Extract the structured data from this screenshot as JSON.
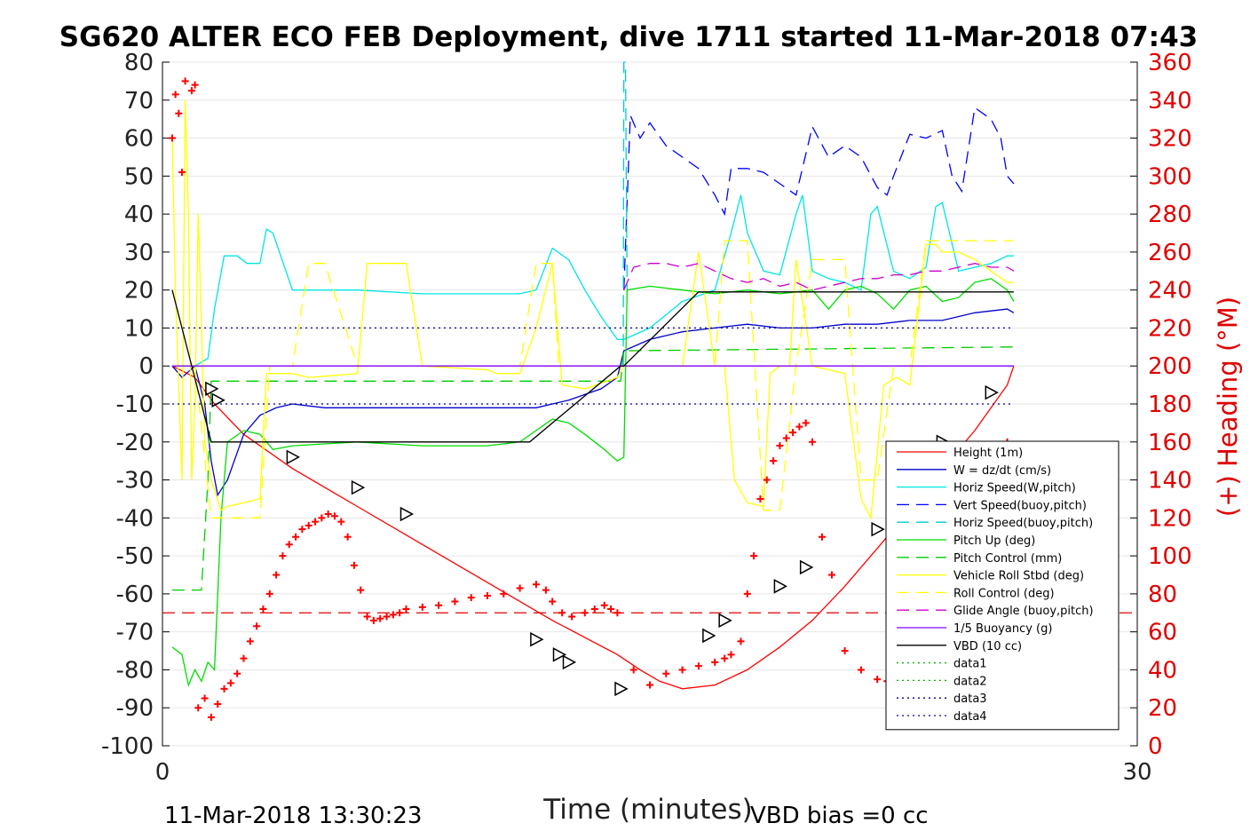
{
  "chart_data": {
    "type": "line",
    "title": "SG620 ALTER ECO FEB Deployment, dive 1711 started 11-Mar-2018 07:43",
    "xlabel": "Time (minutes)",
    "ylabel_right": "(+) Heading (°M)",
    "xlim": [
      0,
      30
    ],
    "ylim_left": [
      -100,
      80
    ],
    "ylim_right": [
      0,
      360
    ],
    "x_ticks": [
      "0",
      "30"
    ],
    "y_left_ticks": [
      "80",
      "70",
      "60",
      "50",
      "40",
      "30",
      "20",
      "10",
      "0",
      "-10",
      "-20",
      "-30",
      "-40",
      "-50",
      "-60",
      "-70",
      "-80",
      "-90",
      "-100"
    ],
    "y_right_ticks": [
      "360",
      "340",
      "320",
      "300",
      "280",
      "260",
      "240",
      "220",
      "200",
      "180",
      "160",
      "140",
      "120",
      "100",
      "80",
      "60",
      "40",
      "20",
      "0"
    ],
    "grid": true,
    "legend_position": "bottom-right",
    "footer_left": "11-Mar-2018 13:30:23",
    "footer_right": "VBD bias =0 cc",
    "series": [
      {
        "name": "Height (1m)",
        "color": "#ff0000",
        "style": "solid",
        "x": [
          0.3,
          1.0,
          1.6,
          2.5,
          4.0,
          6.0,
          8.0,
          10.0,
          12.0,
          14.0,
          14.7,
          15.3,
          16.0,
          17.0,
          18.0,
          19.0,
          20.0,
          21.0,
          22.0,
          23.0,
          24.0,
          25.0,
          26.0,
          26.2
        ],
        "y": [
          0,
          -3,
          -10,
          -18,
          -27,
          -37,
          -47,
          -57,
          -67,
          -76,
          -80,
          -83,
          -85,
          -84,
          -80,
          -74,
          -67,
          -58,
          -48,
          -38,
          -27,
          -17,
          -5,
          0
        ]
      },
      {
        "name": "W = dz/dt (cm/s)",
        "color": "#0000cc",
        "style": "solid",
        "x": [
          0.3,
          0.6,
          1.0,
          1.3,
          1.5,
          1.7,
          2.0,
          2.5,
          3.0,
          3.5,
          4.0,
          5.0,
          6.0,
          8.0,
          10.0,
          11.5,
          12.5,
          13.5,
          14.0,
          14.2,
          15.0,
          16.0,
          17.0,
          18.0,
          19.0,
          20.0,
          21.0,
          22.0,
          23.0,
          24.0,
          25.0,
          26.0,
          26.2
        ],
        "y": [
          0,
          -3,
          0,
          -10,
          -25,
          -34,
          -30,
          -18,
          -13,
          -11,
          -10,
          -11,
          -11,
          -11,
          -11,
          -11,
          -9,
          -6,
          -3,
          4,
          7,
          9,
          10,
          11,
          10,
          10,
          11,
          11,
          12,
          12,
          14,
          15,
          14
        ]
      },
      {
        "name": "Horiz Speed(W,pitch)",
        "color": "#00e5e5",
        "style": "solid",
        "x": [
          0.3,
          1.0,
          1.4,
          1.6,
          1.9,
          2.3,
          2.6,
          3.0,
          3.2,
          3.4,
          4.0,
          6.0,
          8.0,
          10.0,
          11.0,
          11.5,
          12.0,
          12.5,
          13.0,
          13.5,
          14.0,
          14.2,
          15.0,
          16.0,
          17.0,
          17.5,
          17.8,
          18.0,
          18.5,
          19.0,
          19.5,
          19.7,
          20.0,
          20.5,
          21.0,
          21.5,
          21.8,
          22.0,
          22.5,
          23.0,
          23.5,
          23.8,
          24.0,
          24.5,
          25.0,
          25.5,
          26.0,
          26.2
        ],
        "y": [
          0,
          0,
          2,
          15,
          29,
          29,
          27,
          27,
          36,
          35,
          20,
          20,
          19,
          19,
          19,
          20,
          31,
          28,
          20,
          13,
          7,
          7,
          10,
          17,
          20,
          35,
          45,
          35,
          25,
          24,
          40,
          45,
          25,
          23,
          22,
          20,
          40,
          42,
          25,
          23,
          26,
          42,
          43,
          25,
          26,
          27,
          29,
          29
        ]
      },
      {
        "name": "Vert Speed(buoy,pitch)",
        "color": "#0000ff",
        "style": "dash",
        "x": [
          14.2,
          14.4,
          14.7,
          15.0,
          15.5,
          16.0,
          16.5,
          17.0,
          17.3,
          17.5,
          18.0,
          18.5,
          19.0,
          19.5,
          20.0,
          20.5,
          21.0,
          21.5,
          22.0,
          22.3,
          22.5,
          23.0,
          23.5,
          24.0,
          24.3,
          24.6,
          25.0,
          25.5,
          25.8,
          26.0,
          26.2
        ],
        "y": [
          20,
          66,
          60,
          64,
          58,
          55,
          52,
          45,
          40,
          52,
          52,
          51,
          48,
          45,
          63,
          55,
          58,
          55,
          47,
          45,
          50,
          61,
          60,
          62,
          50,
          46,
          68,
          65,
          60,
          50,
          48
        ]
      },
      {
        "name": "Horiz Speed(buoy,pitch)",
        "color": "#00cccc",
        "style": "dash",
        "x": [
          14.18,
          14.2,
          14.25,
          14.3
        ],
        "y": [
          0,
          80,
          80,
          20
        ]
      },
      {
        "name": "Pitch Up (deg)",
        "color": "#00dd00",
        "style": "solid",
        "x": [
          0.3,
          0.6,
          0.8,
          1.0,
          1.2,
          1.4,
          1.6,
          1.8,
          2.0,
          2.5,
          3.0,
          3.4,
          4.0,
          6.0,
          8.0,
          10.0,
          11.0,
          11.5,
          12.0,
          12.5,
          13.0,
          13.6,
          14.0,
          14.2,
          14.3,
          15.0,
          16.0,
          17.0,
          18.0,
          19.0,
          20.0,
          20.5,
          21.0,
          21.5,
          22.0,
          22.5,
          23.0,
          23.5,
          24.0,
          24.5,
          25.0,
          25.5,
          26.0,
          26.2
        ],
        "y": [
          -74,
          -76,
          -84,
          -80,
          -83,
          -78,
          -80,
          -40,
          -20,
          -17,
          -18,
          -22,
          -21,
          -20,
          -21,
          -21,
          -20,
          -17,
          -14,
          -15,
          -18,
          -22,
          -25,
          -24,
          20,
          21,
          20,
          19,
          20,
          19,
          20,
          15,
          20,
          21,
          19,
          15,
          20,
          21,
          17,
          18,
          22,
          23,
          20,
          17
        ]
      },
      {
        "name": "Pitch Control (mm)",
        "color": "#00cc00",
        "style": "dash",
        "x": [
          0.3,
          1.2,
          1.4,
          1.5,
          2.0,
          14.1,
          14.2,
          26.2
        ],
        "y": [
          -59,
          -59,
          -30,
          -4,
          -4,
          -4,
          4,
          5
        ]
      },
      {
        "name": "Vehicle Roll Stbd (deg)",
        "color": "#ffff00",
        "style": "solid",
        "x": [
          0.3,
          0.4,
          0.6,
          0.7,
          0.8,
          0.9,
          1.0,
          1.1,
          1.3,
          1.5,
          1.8,
          2.0,
          2.5,
          3.0,
          3.2,
          4.0,
          4.5,
          6.0,
          6.3,
          7.5,
          8.0,
          10.0,
          10.3,
          11.0,
          11.5,
          12.0,
          12.3,
          13.0,
          14.0,
          14.2,
          16.0,
          16.5,
          17.0,
          17.3,
          17.6,
          18.0,
          18.5,
          18.7,
          19.0,
          19.3,
          19.5,
          20.0,
          21.0,
          21.5,
          21.8,
          22.2,
          22.6,
          23.0,
          23.5,
          23.8,
          24.0,
          24.5,
          25.0,
          25.5,
          26.0,
          26.2
        ],
        "y": [
          60,
          20,
          -30,
          70,
          40,
          -30,
          -10,
          40,
          -20,
          -30,
          -38,
          -37,
          -36,
          -35,
          -2,
          -2,
          -3,
          -2,
          27,
          27,
          0,
          -1,
          -2,
          -2,
          10,
          27,
          -5,
          -6,
          -3,
          0,
          0,
          30,
          0,
          0,
          -30,
          -36,
          -37,
          -2,
          0,
          0,
          28,
          0,
          -2,
          -35,
          -40,
          -5,
          -3,
          -5,
          32,
          32,
          30,
          30,
          28,
          25,
          22,
          22
        ]
      },
      {
        "name": "Roll Control (deg)",
        "color": "#ffff00",
        "style": "dash",
        "x": [
          0.3,
          1.0,
          1.5,
          2.0,
          3.0,
          3.3,
          4.0,
          4.5,
          5.0,
          6.0,
          6.2,
          8.0,
          11.0,
          11.5,
          12.0,
          12.2,
          13.0,
          14.2,
          15.0,
          16.0,
          17.0,
          17.3,
          18.0,
          18.5,
          19.0,
          19.5,
          20.0,
          21.0,
          21.5,
          22.0,
          22.5,
          23.0,
          23.5,
          24.0,
          25.0,
          26.0,
          26.2
        ],
        "y": [
          0,
          0,
          -40,
          -40,
          -40,
          0,
          0,
          27,
          27,
          0,
          0,
          0,
          0,
          27,
          27,
          0,
          0,
          0,
          0,
          0,
          0,
          33,
          33,
          -38,
          -38,
          0,
          28,
          28,
          -30,
          -30,
          0,
          0,
          33,
          33,
          33,
          33,
          33
        ]
      },
      {
        "name": "Glide Angle (buoy,pitch)",
        "color": "#cc00cc",
        "style": "dash",
        "x": [
          14.2,
          14.5,
          15.0,
          15.5,
          16.0,
          16.5,
          17.0,
          17.5,
          18.0,
          18.5,
          19.0,
          19.5,
          20.0,
          20.5,
          21.0,
          21.5,
          22.0,
          22.5,
          23.0,
          23.5,
          24.0,
          24.5,
          25.0,
          25.5,
          26.0,
          26.2
        ],
        "y": [
          20,
          26,
          27,
          27,
          26,
          27,
          25,
          23,
          22,
          23,
          21,
          22,
          20,
          21,
          22,
          23,
          23,
          24,
          24,
          25,
          25,
          26,
          27,
          26,
          26,
          25
        ]
      },
      {
        "name": "1/5 Buoyancy (g)",
        "color": "#8000ff",
        "style": "solid",
        "x": [
          0.3,
          14.2,
          26.2
        ],
        "y": [
          0,
          0,
          0
        ]
      },
      {
        "name": "VBD (10 cc)",
        "color": "#000000",
        "style": "solid",
        "x": [
          0.3,
          1.5,
          11.3,
          14.1,
          14.2,
          16.5,
          26.2
        ],
        "y": [
          20,
          -20,
          -20,
          0,
          0,
          19.5,
          19.5
        ]
      },
      {
        "name": "data1",
        "color": "#00aa00",
        "style": "dot",
        "x": [],
        "y": []
      },
      {
        "name": "data2",
        "color": "#00aa00",
        "style": "dot",
        "x": [],
        "y": []
      },
      {
        "name": "data3",
        "color": "#000080",
        "style": "dot",
        "x": [
          0.3,
          26.2
        ],
        "y": [
          10,
          10
        ]
      },
      {
        "name": "data4",
        "color": "#000080",
        "style": "dot",
        "x": [
          0.3,
          26.2
        ],
        "y": [
          -10,
          -10
        ]
      }
    ],
    "heading_series": {
      "name": "Heading",
      "axis": "right",
      "color": "#ff0000",
      "marker": "+",
      "x": [
        0.3,
        0.4,
        0.5,
        0.6,
        0.7,
        0.9,
        1.0,
        1.1,
        1.3,
        1.5,
        1.7,
        1.9,
        2.1,
        2.3,
        2.5,
        2.7,
        2.9,
        3.1,
        3.3,
        3.5,
        3.7,
        3.9,
        4.1,
        4.3,
        4.5,
        4.7,
        4.9,
        5.1,
        5.3,
        5.5,
        5.7,
        5.9,
        6.1,
        6.3,
        6.5,
        6.7,
        6.9,
        7.1,
        7.3,
        7.5,
        8.0,
        8.5,
        9.0,
        9.5,
        10.0,
        10.5,
        11.0,
        11.5,
        11.8,
        12.0,
        12.3,
        12.6,
        13.0,
        13.3,
        13.6,
        13.8,
        14.0,
        14.5,
        15.0,
        15.5,
        16.0,
        16.5,
        17.0,
        17.3,
        17.5,
        17.8,
        18.0,
        18.2,
        18.4,
        18.6,
        18.8,
        19.0,
        19.2,
        19.4,
        19.6,
        19.8,
        20.0,
        20.3,
        20.6,
        21.0,
        21.5,
        22.0,
        22.3,
        22.6,
        23.0,
        23.5,
        24.0,
        24.5,
        25.0,
        25.5,
        26.0
      ],
      "y": [
        320,
        343,
        333,
        302,
        350,
        345,
        348,
        20,
        25,
        15,
        22,
        30,
        33,
        38,
        46,
        55,
        63,
        72,
        80,
        90,
        100,
        106,
        110,
        114,
        116,
        118,
        120,
        122,
        121,
        118,
        110,
        95,
        82,
        68,
        66,
        67,
        68,
        69,
        70,
        72,
        73,
        74,
        76,
        78,
        79,
        80,
        83,
        85,
        82,
        76,
        70,
        68,
        70,
        72,
        74,
        72,
        70,
        40,
        32,
        38,
        40,
        42,
        44,
        46,
        48,
        55,
        80,
        100,
        130,
        140,
        150,
        158,
        162,
        165,
        168,
        170,
        160,
        110,
        90,
        50,
        40,
        35,
        34,
        34,
        38,
        60,
        80,
        110,
        130,
        145,
        160
      ]
    },
    "triangles": {
      "x": [
        1.5,
        1.7,
        4.0,
        6.0,
        7.5,
        11.5,
        12.2,
        12.5,
        14.1,
        16.8,
        17.3,
        19.0,
        19.8,
        22.0,
        23.0,
        24.0,
        25.5
      ],
      "y": [
        -6,
        -9,
        -24,
        -32,
        -39,
        -72,
        -76,
        -78,
        -85,
        -71,
        -67,
        -58,
        -53,
        -43,
        -37,
        -20,
        -7
      ]
    }
  }
}
